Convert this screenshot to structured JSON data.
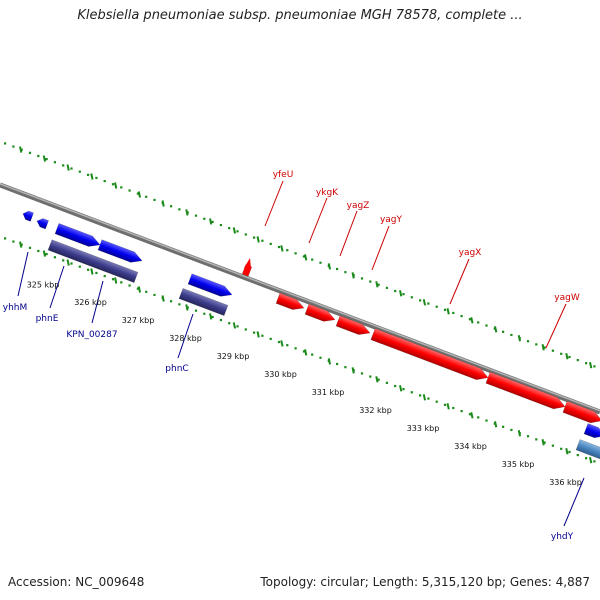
{
  "title": "Klebsiella pneumoniae subsp. pneumoniae MGH 78578, complete ...",
  "footer": {
    "accession": "Accession: NC_009648",
    "topology": "Topology: circular; Length: 5,315,120 bp; Genes: 4,887"
  },
  "colors": {
    "forward_gene": "#ff0000",
    "reverse_gene": "#0000ee",
    "reverse_cds": "#3c3c8c",
    "light_cds": "#4a86c0",
    "forward_label": "#cc0000",
    "reverse_label": "#00008b",
    "dotted_track": "#1a8a1a",
    "backbone": "#888888"
  },
  "ruler": {
    "unit": "kbp",
    "ticks": [
      {
        "kbp": 325,
        "label": "325 kbp"
      },
      {
        "kbp": 326,
        "label": "326 kbp"
      },
      {
        "kbp": 327,
        "label": "327 kbp"
      },
      {
        "kbp": 328,
        "label": "328 kbp"
      },
      {
        "kbp": 329,
        "label": "329 kbp"
      },
      {
        "kbp": 330,
        "label": "330 kbp"
      },
      {
        "kbp": 331,
        "label": "331 kbp"
      },
      {
        "kbp": 332,
        "label": "332 kbp"
      },
      {
        "kbp": 333,
        "label": "333 kbp"
      },
      {
        "kbp": 334,
        "label": "334 kbp"
      },
      {
        "kbp": 335,
        "label": "335 kbp"
      },
      {
        "kbp": 336,
        "label": "336 kbp"
      }
    ]
  },
  "genes": {
    "forward": [
      {
        "name": "yfeU",
        "start_kbp": 329.66,
        "end_kbp": 329.74
      },
      {
        "name": "ykgK",
        "start_kbp": 330.25,
        "end_kbp": 330.75
      },
      {
        "name": "yagZ",
        "start_kbp": 330.85,
        "end_kbp": 331.4
      },
      {
        "name": "yagY",
        "start_kbp": 331.5,
        "end_kbp": 332.1
      },
      {
        "name": "yagX",
        "start_kbp": 332.3,
        "end_kbp": 334.6
      },
      {
        "name": "yagW",
        "start_kbp": 334.65,
        "end_kbp": 336.0
      }
    ],
    "reverse": [
      {
        "name": "yhhM",
        "start_kbp": 324.4,
        "end_kbp": 324.55
      },
      {
        "name": "phnE",
        "start_kbp": 324.7,
        "end_kbp": 324.85
      },
      {
        "name": "KPN_00287",
        "start_kbp": 325.12,
        "end_kbp": 325.9
      },
      {
        "name": "phnC",
        "start_kbp": 326.1,
        "end_kbp": 326.8
      },
      {
        "name": "",
        "start_kbp": 328.4,
        "end_kbp": 329.1
      },
      {
        "name": "yhdY",
        "start_kbp": 336.35,
        "end_kbp": 336.75
      }
    ]
  },
  "gene_labels": {
    "forward": [
      "yfeU",
      "ykgK",
      "yagZ",
      "yagY",
      "yagX",
      "yagW"
    ],
    "reverse": [
      "yhhM",
      "phnE",
      "KPN_00287",
      "phnC",
      "yhdY"
    ]
  }
}
